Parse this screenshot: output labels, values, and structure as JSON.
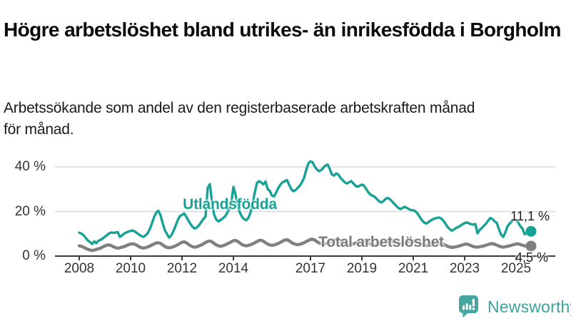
{
  "header": {
    "title": "Högre arbetslöshet bland utrikes- än inrikesfödda i Borgholm",
    "subtitle": "Arbetssökande som andel av den registerbaserade arbetskraften månad för månad."
  },
  "footer": {
    "brand": "Newsworthy"
  },
  "colors": {
    "series_foreign": "#17a295",
    "series_total": "#808080",
    "grid": "#d9d9d9",
    "axis": "#3a3a3a",
    "brand_teal": "#46a59f"
  },
  "chart_data": {
    "type": "line",
    "title": "Högre arbetslöshet bland utrikes- än inrikesfödda i Borgholm",
    "subtitle": "Arbetssökande som andel av den registerbaserade arbetskraften månad för månad.",
    "x_start": 2008,
    "points_per_year": 12,
    "ylim": [
      0,
      45
    ],
    "grid": "horizontal",
    "y_ticks": [
      {
        "value": 0,
        "label": "0 %"
      },
      {
        "value": 20,
        "label": "20 %"
      },
      {
        "value": 40,
        "label": "40 %"
      }
    ],
    "x_ticks": [
      {
        "value": 2008,
        "label": "2008"
      },
      {
        "value": 2010,
        "label": "2010"
      },
      {
        "value": 2012,
        "label": "2012"
      },
      {
        "value": 2014,
        "label": "2014"
      },
      {
        "value": 2017,
        "label": "2017"
      },
      {
        "value": 2019,
        "label": "2019"
      },
      {
        "value": 2021,
        "label": "2021"
      },
      {
        "value": 2023,
        "label": "2023"
      },
      {
        "value": 2025,
        "label": "2025"
      }
    ],
    "series": [
      {
        "name": "Utlandsfödda",
        "color": "#17a295",
        "end_label": "11,1 %",
        "end_value": 11.1,
        "values": [
          10.5,
          10.1,
          9.4,
          8.2,
          7.0,
          6.3,
          5.4,
          6.6,
          5.8,
          6.9,
          7.3,
          7.9,
          8.7,
          9.4,
          10.2,
          10.6,
          10.4,
          10.6,
          10.8,
          8.6,
          9.3,
          10.1,
          10.6,
          11.0,
          11.3,
          11.5,
          11.0,
          10.3,
          9.6,
          9.0,
          8.6,
          9.3,
          10.3,
          12.2,
          14.8,
          17.6,
          19.6,
          20.3,
          18.2,
          14.6,
          11.6,
          9.9,
          8.3,
          9.3,
          11.2,
          13.6,
          16.1,
          17.9,
          18.5,
          19.1,
          17.7,
          15.9,
          14.3,
          13.1,
          12.3,
          12.9,
          13.9,
          15.3,
          16.7,
          17.7,
          30.6,
          32.3,
          24.2,
          18.6,
          16.4,
          15.6,
          16.2,
          16.9,
          17.7,
          19.2,
          21.2,
          23.8,
          31.0,
          27.6,
          22.6,
          19.6,
          17.6,
          16.6,
          16.1,
          17.1,
          19.6,
          23.6,
          28.6,
          32.8,
          33.6,
          33.0,
          32.2,
          33.4,
          30.1,
          29.3,
          27.1,
          26.8,
          28.6,
          30.6,
          32.1,
          33.1,
          33.6,
          34.1,
          32.1,
          30.1,
          29.1,
          29.6,
          30.6,
          31.6,
          33.1,
          35.1,
          38.6,
          41.6,
          42.5,
          42.1,
          40.1,
          38.9,
          38.1,
          38.6,
          39.6,
          40.6,
          41.1,
          39.1,
          36.6,
          36.1,
          37.1,
          36.6,
          35.1,
          34.1,
          33.1,
          32.6,
          33.1,
          33.6,
          32.6,
          31.6,
          31.1,
          31.6,
          32.1,
          31.6,
          30.1,
          28.6,
          27.6,
          27.1,
          26.6,
          25.6,
          24.6,
          24.1,
          24.6,
          25.6,
          26.1,
          25.6,
          24.6,
          23.6,
          22.6,
          21.6,
          21.1,
          21.6,
          22.1,
          21.6,
          21.1,
          20.6,
          20.6,
          20.1,
          19.1,
          17.6,
          16.1,
          15.1,
          14.6,
          15.1,
          15.9,
          16.4,
          16.9,
          17.1,
          17.3,
          16.9,
          15.9,
          14.6,
          13.1,
          12.1,
          11.4,
          11.9,
          12.6,
          13.1,
          13.6,
          14.3,
          14.8,
          15.1,
          14.7,
          14.3,
          14.1,
          14.4,
          10.2,
          11.7,
          12.6,
          13.6,
          14.6,
          15.9,
          17.1,
          16.6,
          15.6,
          14.9,
          12.1,
          9.6,
          8.6,
          10.6,
          13.3,
          14.6,
          15.6,
          16.1,
          16.2,
          15.1,
          13.4,
          12.4,
          9.8,
          10.6,
          11.4,
          11.1
        ]
      },
      {
        "name": "Total arbetslöshet",
        "color": "#808080",
        "end_label": "4,5 %",
        "end_value": 4.5,
        "values": [
          4.6,
          4.4,
          4.0,
          3.5,
          3.0,
          2.8,
          2.5,
          2.7,
          3.0,
          3.3,
          3.6,
          4.1,
          4.6,
          4.9,
          5.0,
          4.7,
          4.2,
          3.8,
          3.5,
          3.7,
          4.0,
          4.3,
          4.7,
          5.1,
          5.4,
          5.5,
          5.3,
          4.8,
          4.2,
          3.8,
          3.6,
          3.8,
          4.1,
          4.5,
          5.0,
          5.5,
          5.9,
          6.0,
          5.7,
          5.0,
          4.3,
          3.9,
          3.7,
          3.9,
          4.2,
          4.6,
          5.1,
          5.7,
          6.2,
          6.4,
          6.0,
          5.3,
          4.6,
          4.2,
          4.0,
          4.2,
          4.6,
          5.0,
          5.5,
          6.1,
          6.6,
          6.8,
          6.4,
          5.7,
          5.0,
          4.6,
          4.4,
          4.6,
          5.0,
          5.4,
          5.9,
          6.4,
          6.9,
          7.0,
          6.6,
          5.9,
          5.2,
          4.8,
          4.6,
          4.8,
          5.1,
          5.5,
          6.0,
          6.5,
          7.0,
          7.1,
          6.7,
          6.0,
          5.4,
          5.0,
          4.8,
          5.0,
          5.3,
          5.7,
          6.2,
          6.7,
          7.2,
          7.3,
          6.9,
          6.2,
          5.6,
          5.3,
          5.1,
          5.3,
          5.6,
          6.0,
          6.5,
          7.0,
          7.5,
          7.6,
          7.2,
          6.5,
          5.9,
          5.6,
          5.4,
          5.6,
          5.9,
          6.2,
          6.6,
          7.0,
          7.3,
          7.3,
          6.9,
          6.2,
          5.6,
          5.3,
          5.1,
          5.3,
          5.5,
          5.8,
          6.2,
          6.6,
          6.9,
          7.0,
          6.6,
          6.0,
          5.4,
          5.1,
          5.0,
          5.2,
          5.4,
          5.7,
          6.0,
          6.4,
          6.7,
          6.7,
          6.5,
          6.3,
          6.0,
          5.8,
          5.6,
          5.8,
          5.9,
          6.0,
          6.2,
          6.5,
          6.7,
          6.7,
          6.4,
          5.9,
          5.4,
          5.0,
          4.7,
          4.8,
          4.9,
          5.0,
          5.2,
          5.5,
          5.7,
          5.7,
          5.4,
          4.9,
          4.4,
          4.1,
          3.9,
          4.0,
          4.2,
          4.4,
          4.7,
          5.0,
          5.3,
          5.4,
          5.1,
          4.7,
          4.3,
          4.1,
          4.0,
          4.2,
          4.4,
          4.6,
          4.9,
          5.2,
          5.5,
          5.6,
          5.3,
          4.9,
          4.5,
          4.2,
          4.0,
          4.2,
          4.4,
          4.6,
          4.9,
          5.2,
          5.4,
          5.5,
          5.2,
          4.9,
          4.6,
          4.4,
          4.4,
          4.5
        ]
      }
    ]
  }
}
